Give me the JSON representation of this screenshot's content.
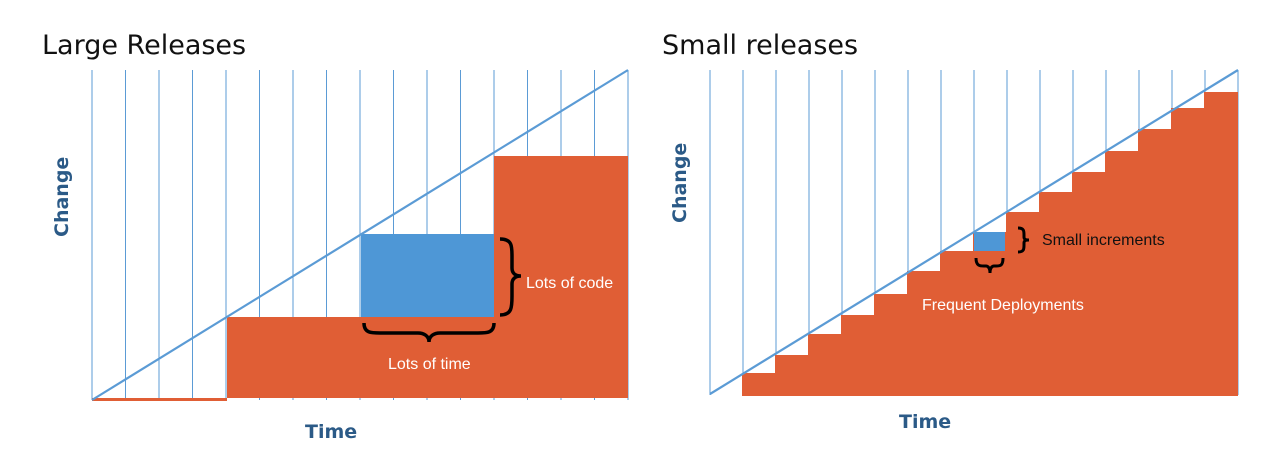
{
  "colors": {
    "grid_line": "#5b9bd5",
    "diagonal": "#5b9bd5",
    "released_area": "#e05e35",
    "pending_block": "#4e97d6",
    "axis_label": "#2b5a87",
    "annotation_on_orange": "#ffffff",
    "annotation_on_white": "#111111",
    "brace": "#000000"
  },
  "left_panel": {
    "title": "Large Releases",
    "x_axis_label": "Time",
    "y_axis_label": "Change",
    "annotations": {
      "code_label": "Lots of code",
      "time_label": "Lots of time"
    }
  },
  "right_panel": {
    "title": "Small releases",
    "x_axis_label": "Time",
    "y_axis_label": "Change",
    "annotations": {
      "increment_label": "Small increments",
      "deploy_label": "Frequent Deployments"
    }
  }
}
